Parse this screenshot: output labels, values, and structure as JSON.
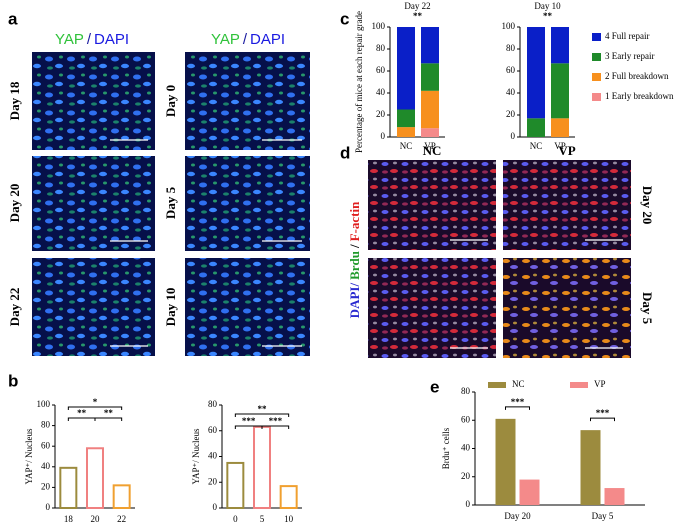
{
  "panel_labels": [
    "a",
    "b",
    "c",
    "d",
    "e"
  ],
  "panel_a": {
    "header_left": [
      "YAP",
      "/",
      "DAPI"
    ],
    "header_right": [
      "YAP",
      "/",
      "DAPI"
    ],
    "rows_left": [
      "Day 18",
      "Day 20",
      "Day 22"
    ],
    "rows_right": [
      "Day 0",
      "Day 5",
      "Day 10"
    ]
  },
  "panel_d": {
    "columns": [
      "NC",
      "VP"
    ],
    "rows": [
      "Day 20",
      "Day 5"
    ],
    "stain": [
      "DAPI/",
      "Brdu",
      "/",
      "F-actin"
    ]
  },
  "chart_data": [
    {
      "type": "bar",
      "ylabel": "YAP⁺/ Nucleus",
      "categories": [
        "18",
        "20",
        "22"
      ],
      "values": [
        39,
        58,
        22
      ],
      "colors": [
        "#9c8b3e",
        "#f08080",
        "#f0a030"
      ],
      "ylim": [
        0,
        100
      ],
      "yticks": [
        0,
        20,
        40,
        60,
        80,
        100
      ],
      "significance": [
        "**",
        "*",
        "**"
      ]
    },
    {
      "type": "bar",
      "ylabel": "YAP⁺/ Nucleus",
      "categories": [
        "0",
        "5",
        "10"
      ],
      "values": [
        35,
        63,
        17
      ],
      "colors": [
        "#9c8b3e",
        "#f08080",
        "#f0a030"
      ],
      "ylim": [
        0,
        80
      ],
      "yticks": [
        0,
        20,
        40,
        60,
        80
      ],
      "significance": [
        "**",
        "***",
        "***"
      ]
    },
    {
      "type": "stacked-bar",
      "ylabel": "Percentage of mice at each repair grade",
      "group_titles": [
        "Day 22",
        "Day 10"
      ],
      "significance": [
        "**",
        "**"
      ],
      "categories": [
        "NC",
        "VP",
        "NC",
        "VP"
      ],
      "ylim": [
        0,
        100
      ],
      "yticks": [
        0,
        20,
        40,
        60,
        80,
        100
      ],
      "series": [
        {
          "name": "4 Full repair",
          "color": "#0a1fc8",
          "values": [
            75,
            33,
            83,
            33
          ]
        },
        {
          "name": "3 Early repair",
          "color": "#1f8a2a",
          "values": [
            16,
            25,
            17,
            50
          ]
        },
        {
          "name": "2 Full breakdown",
          "color": "#f7901e",
          "values": [
            9,
            34,
            0,
            17
          ]
        },
        {
          "name": "1 Early breakdown",
          "color": "#f48a8a",
          "values": [
            0,
            8,
            0,
            0
          ]
        }
      ]
    },
    {
      "type": "grouped-bar",
      "ylabel": "Brdu⁺ cells",
      "categories": [
        "Day 20",
        "Day 5"
      ],
      "ylim": [
        0,
        80
      ],
      "yticks": [
        0,
        20,
        40,
        60,
        80
      ],
      "significance": [
        "***",
        "***"
      ],
      "series": [
        {
          "name": "NC",
          "color": "#9c8b3e",
          "values": [
            61,
            53
          ]
        },
        {
          "name": "VP",
          "color": "#f48a8a",
          "values": [
            18,
            12
          ]
        }
      ]
    }
  ]
}
